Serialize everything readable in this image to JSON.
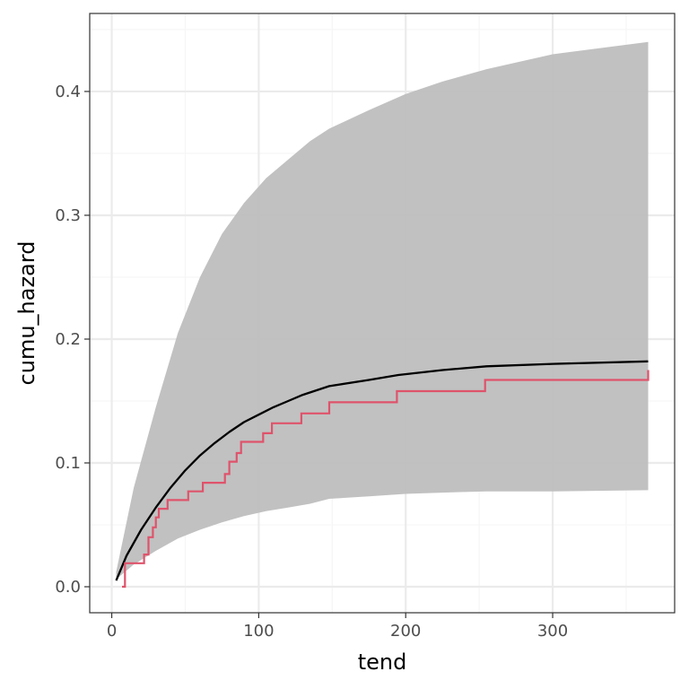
{
  "chart_data": {
    "type": "line",
    "title": "",
    "xlabel": "tend",
    "ylabel": "cumu_hazard",
    "xlim": [
      -15,
      383
    ],
    "ylim": [
      -0.021,
      0.463
    ],
    "x_ticks": [
      0,
      100,
      200,
      300
    ],
    "x_tick_labels": [
      "0",
      "100",
      "200",
      "300"
    ],
    "y_ticks": [
      0.0,
      0.1,
      0.2,
      0.3,
      0.4
    ],
    "y_tick_labels": [
      "0.0",
      "0.1",
      "0.2",
      "0.3",
      "0.4"
    ],
    "grid": true,
    "legend": "none",
    "series": [
      {
        "kind": "ribbon",
        "x": [
          3,
          15,
          30,
          45,
          60,
          75,
          90,
          105,
          120,
          135,
          148,
          175,
          200,
          225,
          255,
          300,
          365
        ],
        "lower": [
          0.006,
          0.018,
          0.029,
          0.039,
          0.046,
          0.052,
          0.057,
          0.061,
          0.064,
          0.067,
          0.071,
          0.073,
          0.075,
          0.076,
          0.077,
          0.077,
          0.078
        ],
        "upper": [
          0.012,
          0.08,
          0.145,
          0.205,
          0.25,
          0.285,
          0.31,
          0.33,
          0.345,
          0.36,
          0.37,
          0.385,
          0.398,
          0.408,
          0.418,
          0.43,
          0.44
        ]
      },
      {
        "kind": "line",
        "x": [
          3,
          10,
          20,
          30,
          40,
          50,
          60,
          70,
          80,
          90,
          100,
          110,
          120,
          130,
          148,
          175,
          195,
          225,
          255,
          300,
          365
        ],
        "y": [
          0.005,
          0.025,
          0.046,
          0.064,
          0.08,
          0.094,
          0.106,
          0.116,
          0.125,
          0.133,
          0.139,
          0.145,
          0.15,
          0.155,
          0.162,
          0.167,
          0.171,
          0.175,
          0.178,
          0.18,
          0.182
        ]
      },
      {
        "kind": "step",
        "x": [
          7,
          9,
          16,
          22,
          25,
          28,
          30,
          32,
          38,
          52,
          62,
          77,
          80,
          85,
          88,
          103,
          109,
          129,
          148,
          194,
          254,
          365
        ],
        "y": [
          0.0,
          0.019,
          0.019,
          0.026,
          0.04,
          0.048,
          0.056,
          0.063,
          0.07,
          0.077,
          0.084,
          0.091,
          0.101,
          0.108,
          0.117,
          0.124,
          0.132,
          0.14,
          0.149,
          0.158,
          0.167,
          0.175
        ]
      }
    ],
    "colors": {
      "ribbon": "#bebebe",
      "line": "#000000",
      "step": "#df536b",
      "grid_major": "#ebebeb",
      "grid_minor": "#f5f5f5",
      "panel_border": "#333333",
      "tick_text": "#4d4d4d"
    }
  }
}
